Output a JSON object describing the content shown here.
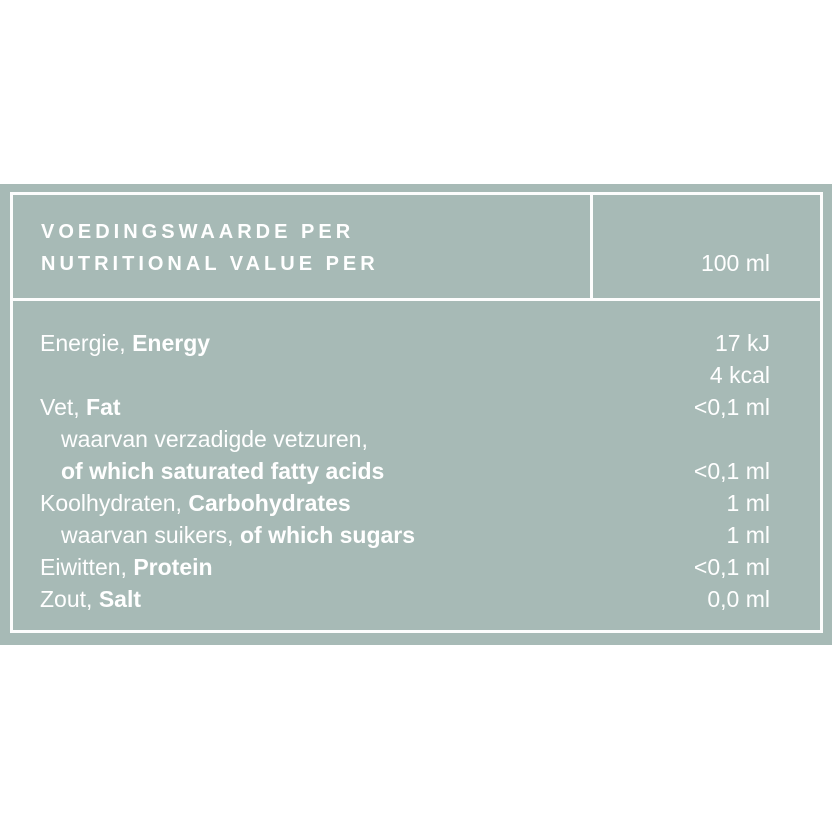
{
  "colors": {
    "band_background": "#a7bab6",
    "border_and_text": "#ffffff",
    "page_background": "#ffffff"
  },
  "header": {
    "title_nl": "VOEDINGSWAARDE PER",
    "title_en": "NUTRITIONAL VALUE PER",
    "serving": "100 ml"
  },
  "rows": [
    {
      "nl": "Energie,",
      "en": "Energy",
      "value": "17 kJ"
    },
    {
      "nl": "",
      "en": "",
      "value": "4 kcal"
    },
    {
      "nl": "Vet,",
      "en": "Fat",
      "value": "<0,1 ml"
    },
    {
      "nl": "waarvan verzadigde vetzuren,",
      "en": "",
      "value": ""
    },
    {
      "nl": "",
      "en": "of which saturated fatty acids",
      "value": "<0,1 ml"
    },
    {
      "nl": "Koolhydraten,",
      "en": "Carbohydrates",
      "value": "1 ml"
    },
    {
      "nl": "waarvan suikers,",
      "en": "of which sugars",
      "value": "1 ml"
    },
    {
      "nl": "Eiwitten,",
      "en": "Protein",
      "value": "<0,1 ml"
    },
    {
      "nl": "Zout,",
      "en": "Salt",
      "value": "0,0 ml"
    }
  ]
}
